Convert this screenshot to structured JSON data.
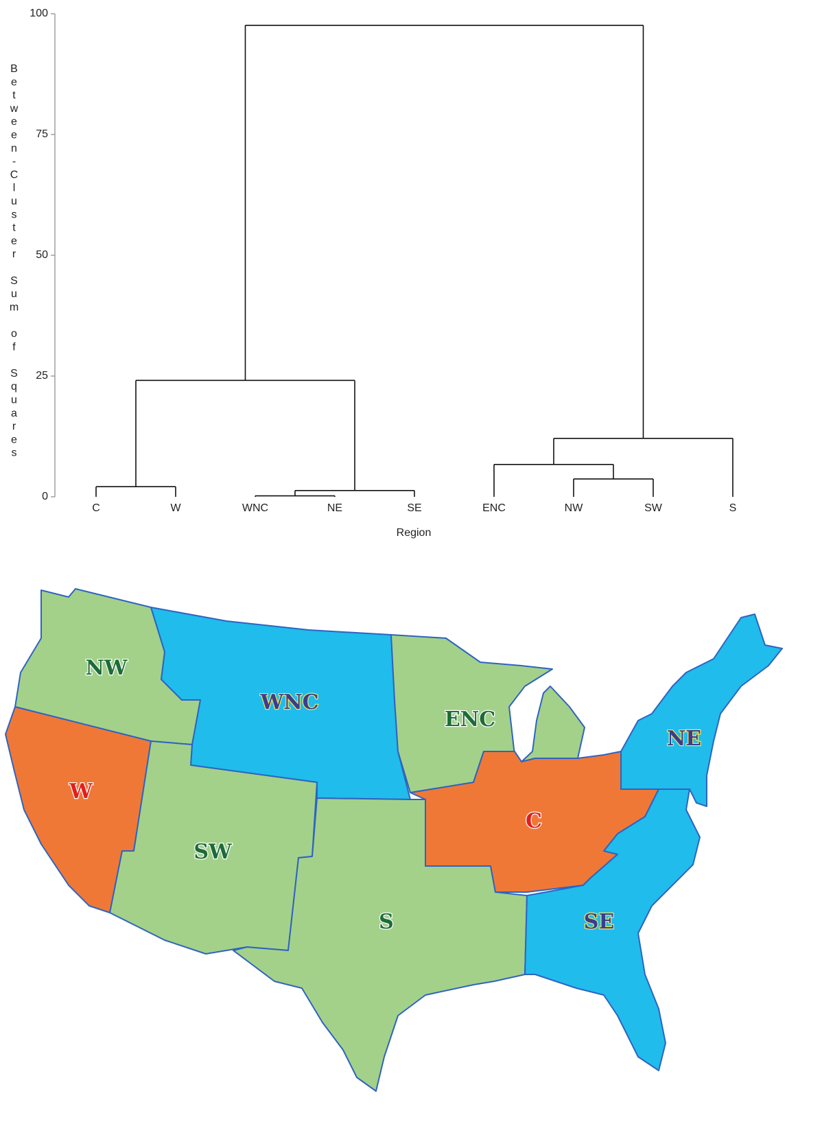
{
  "chart_data": {
    "type": "dendrogram",
    "ylabel": "Between-Cluster Sum of Squares",
    "xlabel": "Region",
    "ylim": [
      0,
      100
    ],
    "yticks": [
      0,
      25,
      50,
      75,
      100
    ],
    "tree": {
      "height": 97.6,
      "children": [
        {
          "height": 24.1,
          "children": [
            {
              "height": 2.1,
              "children": [
                {
                  "label": "C"
                },
                {
                  "label": "W"
                }
              ]
            },
            {
              "height": 1.3,
              "children": [
                {
                  "height": 0.2,
                  "children": [
                    {
                      "label": "WNC"
                    },
                    {
                      "label": "NE"
                    }
                  ]
                },
                {
                  "label": "SE"
                }
              ]
            }
          ]
        },
        {
          "height": 12.1,
          "children": [
            {
              "height": 6.7,
              "children": [
                {
                  "label": "ENC"
                },
                {
                  "height": 3.7,
                  "children": [
                    {
                      "label": "NW"
                    },
                    {
                      "label": "SW"
                    }
                  ]
                }
              ]
            },
            {
              "label": "S"
            }
          ]
        }
      ]
    }
  },
  "map": {
    "regions": [
      {
        "label": "NW",
        "color": "#a3d18a",
        "label_color": "#1e6b3a"
      },
      {
        "label": "WNC",
        "color": "#1fbcec",
        "label_color": "#3b3d8f"
      },
      {
        "label": "W",
        "color": "#f07837",
        "label_color": "#e0201c"
      },
      {
        "label": "SW",
        "color": "#a3d18a",
        "label_color": "#1e6b3a"
      },
      {
        "label": "S",
        "color": "#a3d18a",
        "label_color": "#1e6b3a"
      },
      {
        "label": "ENC",
        "color": "#a3d18a",
        "label_color": "#1e6b3a"
      },
      {
        "label": "C",
        "color": "#f07837",
        "label_color": "#e0201c"
      },
      {
        "label": "NE",
        "color": "#1fbcec",
        "label_color": "#3b3d8f"
      },
      {
        "label": "SE",
        "color": "#1fbcec",
        "label_color": "#3b3d8f"
      }
    ]
  }
}
